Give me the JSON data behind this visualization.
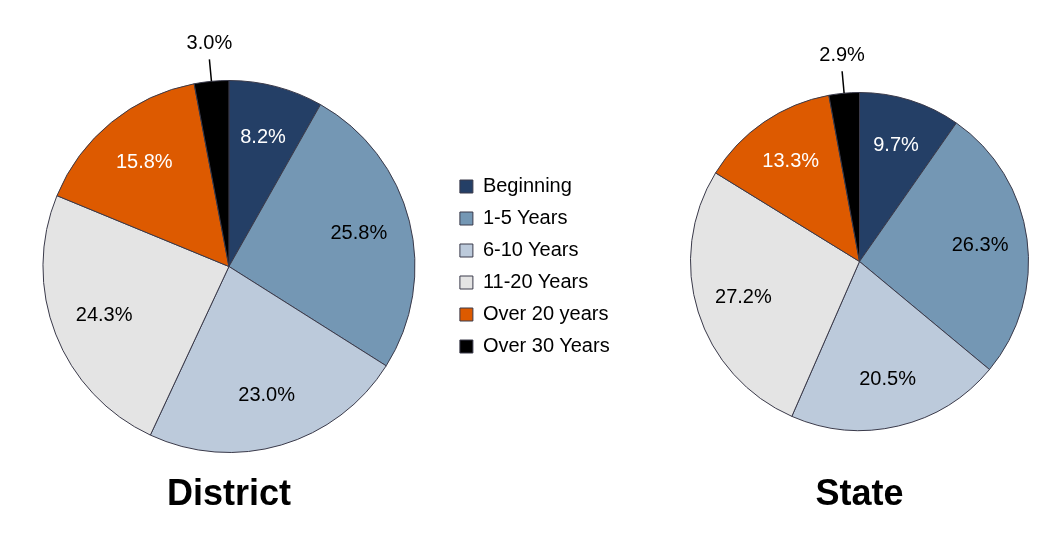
{
  "chart_data": [
    {
      "type": "pie",
      "title": "District",
      "categories": [
        "Beginning",
        "1-5 Years",
        "6-10 Years",
        "11-20 Years",
        "Over 20 years",
        "Over 30 Years"
      ],
      "values": [
        8.2,
        25.8,
        23.0,
        24.3,
        15.8,
        3.0
      ],
      "value_labels": [
        "8.2%",
        "25.8%",
        "23.0%",
        "24.3%",
        "15.8%",
        "3.0%"
      ],
      "colors": [
        "#243f66",
        "#7497b4",
        "#bccadb",
        "#e4e4e4",
        "#dd5a00",
        "#000000"
      ],
      "legend": "right"
    },
    {
      "type": "pie",
      "title": "State",
      "categories": [
        null,
        null,
        null,
        null,
        null,
        null
      ],
      "values": [
        9.7,
        26.3,
        20.5,
        27.2,
        13.3,
        2.9
      ],
      "value_labels": [
        "9.7%",
        "26.3%",
        "20.5%",
        "27.2%",
        "13.3%",
        "2.9%"
      ],
      "colors": [
        "#243f66",
        "#7497b4",
        "#bccadb",
        "#e4e4e4",
        "#dd5a00",
        "#000000"
      ]
    }
  ]
}
